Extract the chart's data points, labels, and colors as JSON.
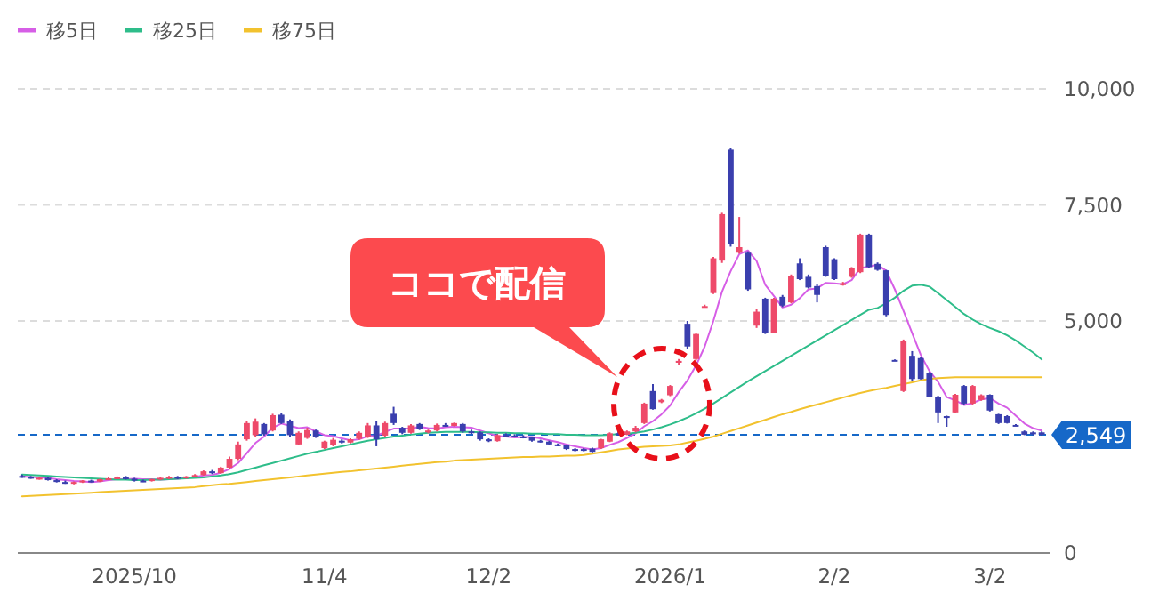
{
  "chart_data": {
    "type": "candlestick",
    "categories": [
      null,
      null,
      null,
      null,
      null,
      null,
      null,
      null,
      null,
      null,
      null,
      null,
      null,
      "2025/10",
      null,
      null,
      null,
      null,
      null,
      null,
      null,
      null,
      null,
      null,
      null,
      null,
      null,
      null,
      null,
      null,
      null,
      null,
      null,
      null,
      null,
      "11/4",
      null,
      null,
      null,
      null,
      null,
      null,
      null,
      null,
      null,
      null,
      null,
      null,
      null,
      null,
      null,
      null,
      null,
      null,
      "12/2",
      null,
      null,
      null,
      null,
      null,
      null,
      null,
      null,
      null,
      null,
      null,
      null,
      null,
      null,
      null,
      null,
      null,
      null,
      null,
      null,
      "2026/1",
      null,
      null,
      null,
      null,
      null,
      null,
      null,
      null,
      null,
      null,
      null,
      null,
      null,
      null,
      null,
      null,
      null,
      null,
      "2/2",
      null,
      null,
      null,
      null,
      null,
      null,
      null,
      null,
      null,
      null,
      null,
      null,
      null,
      null,
      null,
      null,
      null,
      "3/2",
      null,
      null,
      null,
      null,
      null,
      null
    ],
    "ohlc": [
      [
        1660,
        1690,
        1620,
        1640
      ],
      [
        1640,
        1660,
        1600,
        1610
      ],
      [
        1610,
        1640,
        1580,
        1620
      ],
      [
        1620,
        1630,
        1560,
        1570
      ],
      [
        1570,
        1590,
        1520,
        1530
      ],
      [
        1530,
        1560,
        1490,
        1500
      ],
      [
        1500,
        1540,
        1480,
        1530
      ],
      [
        1530,
        1570,
        1510,
        1560
      ],
      [
        1560,
        1580,
        1520,
        1540
      ],
      [
        1540,
        1600,
        1530,
        1590
      ],
      [
        1590,
        1630,
        1570,
        1610
      ],
      [
        1610,
        1650,
        1590,
        1630
      ],
      [
        1630,
        1660,
        1580,
        1600
      ],
      [
        1600,
        1620,
        1540,
        1560
      ],
      [
        1560,
        1580,
        1530,
        1550
      ],
      [
        1550,
        1600,
        1540,
        1590
      ],
      [
        1590,
        1630,
        1570,
        1620
      ],
      [
        1620,
        1660,
        1590,
        1640
      ],
      [
        1640,
        1660,
        1590,
        1610
      ],
      [
        1610,
        1660,
        1600,
        1650
      ],
      [
        1650,
        1700,
        1630,
        1680
      ],
      [
        1680,
        1780,
        1670,
        1760
      ],
      [
        1760,
        1790,
        1700,
        1720
      ],
      [
        1720,
        1860,
        1710,
        1840
      ],
      [
        1840,
        2080,
        1820,
        2030
      ],
      [
        2030,
        2400,
        2000,
        2340
      ],
      [
        2450,
        2850,
        2420,
        2800
      ],
      [
        2540,
        2900,
        2500,
        2830
      ],
      [
        2780,
        2800,
        2530,
        2560
      ],
      [
        2640,
        3000,
        2620,
        2970
      ],
      [
        2980,
        3020,
        2780,
        2800
      ],
      [
        2850,
        2880,
        2500,
        2540
      ],
      [
        2340,
        2620,
        2320,
        2590
      ],
      [
        2480,
        2700,
        2460,
        2650
      ],
      [
        2640,
        2660,
        2480,
        2500
      ],
      [
        2260,
        2420,
        2240,
        2400
      ],
      [
        2320,
        2480,
        2300,
        2440
      ],
      [
        2420,
        2450,
        2360,
        2380
      ],
      [
        2380,
        2470,
        2360,
        2450
      ],
      [
        2460,
        2620,
        2440,
        2590
      ],
      [
        2500,
        2800,
        2480,
        2750
      ],
      [
        2750,
        2850,
        2300,
        2450
      ],
      [
        2530,
        2830,
        2510,
        2800
      ],
      [
        3000,
        3150,
        2760,
        2800
      ],
      [
        2700,
        2720,
        2560,
        2590
      ],
      [
        2590,
        2780,
        2570,
        2750
      ],
      [
        2780,
        2800,
        2650,
        2680
      ],
      [
        2600,
        2660,
        2580,
        2640
      ],
      [
        2640,
        2790,
        2620,
        2760
      ],
      [
        2760,
        2800,
        2720,
        2740
      ],
      [
        2740,
        2810,
        2730,
        2800
      ],
      [
        2780,
        2800,
        2590,
        2620
      ],
      [
        2620,
        2660,
        2560,
        2600
      ],
      [
        2600,
        2620,
        2420,
        2450
      ],
      [
        2450,
        2470,
        2390,
        2410
      ],
      [
        2410,
        2560,
        2400,
        2540
      ],
      [
        2540,
        2580,
        2500,
        2530
      ],
      [
        2530,
        2560,
        2490,
        2510
      ],
      [
        2510,
        2540,
        2470,
        2490
      ],
      [
        2490,
        2510,
        2400,
        2420
      ],
      [
        2420,
        2440,
        2380,
        2400
      ],
      [
        2400,
        2420,
        2320,
        2340
      ],
      [
        2340,
        2360,
        2300,
        2320
      ],
      [
        2320,
        2330,
        2220,
        2240
      ],
      [
        2240,
        2260,
        2190,
        2210
      ],
      [
        2240,
        2260,
        2190,
        2210
      ],
      [
        2250,
        2270,
        2170,
        2180
      ],
      [
        2260,
        2460,
        2240,
        2450
      ],
      [
        2400,
        2600,
        2390,
        2580
      ],
      [
        2580,
        2620,
        2530,
        2550
      ],
      [
        2550,
        2640,
        2540,
        2620
      ],
      [
        2620,
        2740,
        2600,
        2700
      ],
      [
        2800,
        3240,
        2780,
        3220
      ],
      [
        3490,
        3640,
        3090,
        3100
      ],
      [
        3250,
        3320,
        3230,
        3300
      ],
      [
        3400,
        3620,
        3380,
        3600
      ],
      [
        4100,
        4180,
        4060,
        4140
      ],
      [
        4940,
        5000,
        4400,
        4450
      ],
      [
        4180,
        4750,
        4150,
        4720
      ],
      [
        5300,
        5350,
        5290,
        5320
      ],
      [
        5600,
        6380,
        5580,
        6350
      ],
      [
        6300,
        7330,
        6250,
        7300
      ],
      [
        8690,
        8720,
        6600,
        6660
      ],
      [
        6470,
        7240,
        6450,
        6590
      ],
      [
        6470,
        6500,
        5650,
        5680
      ],
      [
        4900,
        5250,
        4850,
        5200
      ],
      [
        5480,
        5500,
        4720,
        4750
      ],
      [
        4750,
        5500,
        4730,
        5480
      ],
      [
        5520,
        5560,
        5300,
        5330
      ],
      [
        5400,
        6000,
        5380,
        5970
      ],
      [
        6240,
        6350,
        5880,
        5900
      ],
      [
        5950,
        6000,
        5700,
        5720
      ],
      [
        5750,
        5800,
        5400,
        5560
      ],
      [
        6590,
        6620,
        5950,
        5970
      ],
      [
        6330,
        6350,
        5880,
        5900
      ],
      [
        5790,
        5840,
        5760,
        5810
      ],
      [
        5950,
        6160,
        5930,
        6140
      ],
      [
        6050,
        6880,
        6030,
        6860
      ],
      [
        6860,
        6880,
        6140,
        6160
      ],
      [
        6230,
        6260,
        6080,
        6100
      ],
      [
        6090,
        6100,
        5100,
        5130
      ],
      [
        4160,
        4170,
        4140,
        4150
      ],
      [
        3490,
        4600,
        3470,
        4560
      ],
      [
        4250,
        4350,
        3700,
        3750
      ],
      [
        4200,
        4230,
        3740,
        3750
      ],
      [
        3870,
        3900,
        3360,
        3370
      ],
      [
        3370,
        3390,
        2800,
        3030
      ],
      [
        2950,
        2960,
        2720,
        2910
      ],
      [
        3030,
        3430,
        3010,
        3410
      ],
      [
        3600,
        3620,
        3200,
        3220
      ],
      [
        3220,
        3620,
        3200,
        3600
      ],
      [
        3300,
        3420,
        3280,
        3400
      ],
      [
        3410,
        3420,
        3050,
        3070
      ],
      [
        2990,
        3000,
        2780,
        2800
      ],
      [
        2950,
        2970,
        2790,
        2800
      ],
      [
        2760,
        2780,
        2740,
        2750
      ],
      [
        2620,
        2640,
        2540,
        2550
      ],
      [
        2600,
        2620,
        2540,
        2560
      ],
      [
        2600,
        2620,
        2530,
        2549
      ]
    ],
    "series": [
      {
        "name": "移5日",
        "type": "line",
        "color": "#d65ee6",
        "values": [
          1650,
          1640,
          1630,
          1620,
          1590,
          1570,
          1550,
          1540,
          1530,
          1540,
          1570,
          1590,
          1590,
          1600,
          1590,
          1590,
          1580,
          1590,
          1600,
          1620,
          1640,
          1670,
          1680,
          1730,
          1810,
          1940,
          2150,
          2370,
          2510,
          2700,
          2790,
          2740,
          2690,
          2710,
          2620,
          2540,
          2520,
          2470,
          2430,
          2450,
          2520,
          2520,
          2610,
          2680,
          2680,
          2680,
          2720,
          2690,
          2680,
          2710,
          2720,
          2710,
          2700,
          2640,
          2580,
          2520,
          2510,
          2490,
          2500,
          2500,
          2470,
          2430,
          2390,
          2340,
          2300,
          2260,
          2230,
          2260,
          2330,
          2390,
          2480,
          2580,
          2730,
          2840,
          2990,
          3180,
          3470,
          3720,
          4040,
          4450,
          5000,
          5630,
          6070,
          6440,
          6520,
          6290,
          5780,
          5540,
          5290,
          5350,
          5490,
          5680,
          5700,
          5820,
          5810,
          5790,
          5880,
          6140,
          6170,
          6210,
          6080,
          5680,
          5220,
          4740,
          4270,
          3920,
          3690,
          3360,
          3290,
          3190,
          3230,
          3310,
          3340,
          3220,
          3130,
          2960,
          2790,
          2690,
          2640
        ]
      },
      {
        "name": "移25日",
        "type": "line",
        "color": "#2ebd8a",
        "values": [
          1690,
          1680,
          1670,
          1660,
          1650,
          1640,
          1630,
          1620,
          1610,
          1600,
          1590,
          1580,
          1580,
          1570,
          1570,
          1580,
          1580,
          1590,
          1600,
          1610,
          1620,
          1630,
          1650,
          1670,
          1700,
          1740,
          1790,
          1840,
          1890,
          1940,
          1990,
          2040,
          2090,
          2140,
          2180,
          2220,
          2260,
          2300,
          2340,
          2380,
          2420,
          2450,
          2480,
          2510,
          2530,
          2550,
          2570,
          2590,
          2600,
          2610,
          2610,
          2610,
          2610,
          2600,
          2600,
          2590,
          2590,
          2580,
          2580,
          2570,
          2570,
          2560,
          2560,
          2550,
          2550,
          2540,
          2540,
          2540,
          2550,
          2560,
          2570,
          2590,
          2620,
          2660,
          2710,
          2770,
          2840,
          2920,
          3010,
          3110,
          3220,
          3340,
          3460,
          3580,
          3700,
          3810,
          3920,
          4030,
          4140,
          4250,
          4360,
          4470,
          4580,
          4690,
          4800,
          4910,
          5020,
          5130,
          5240,
          5280,
          5380,
          5500,
          5650,
          5760,
          5780,
          5740,
          5600,
          5450,
          5300,
          5150,
          5030,
          4930,
          4850,
          4780,
          4690,
          4580,
          4450,
          4320,
          4170
        ]
      },
      {
        "name": "移75日",
        "type": "line",
        "color": "#f2c22e",
        "values": [
          1220,
          1230,
          1240,
          1250,
          1260,
          1270,
          1280,
          1290,
          1300,
          1310,
          1320,
          1330,
          1340,
          1350,
          1360,
          1370,
          1380,
          1390,
          1400,
          1410,
          1420,
          1440,
          1460,
          1480,
          1490,
          1510,
          1530,
          1550,
          1570,
          1590,
          1610,
          1630,
          1650,
          1670,
          1690,
          1710,
          1730,
          1750,
          1760,
          1780,
          1800,
          1820,
          1840,
          1860,
          1880,
          1900,
          1920,
          1940,
          1960,
          1970,
          1990,
          2000,
          2010,
          2020,
          2030,
          2040,
          2050,
          2060,
          2070,
          2070,
          2080,
          2080,
          2090,
          2100,
          2100,
          2110,
          2140,
          2170,
          2200,
          2230,
          2250,
          2270,
          2290,
          2300,
          2310,
          2320,
          2340,
          2380,
          2420,
          2460,
          2510,
          2570,
          2630,
          2690,
          2750,
          2810,
          2870,
          2930,
          2990,
          3040,
          3100,
          3150,
          3200,
          3250,
          3300,
          3350,
          3400,
          3450,
          3490,
          3530,
          3560,
          3600,
          3640,
          3680,
          3720,
          3750,
          3770,
          3780,
          3790,
          3790,
          3790,
          3790,
          3790,
          3790,
          3790,
          3790,
          3790,
          3790,
          3790
        ]
      }
    ],
    "ylim": [
      0,
      10000
    ],
    "yticks": [
      {
        "value": 0,
        "label": "0"
      },
      {
        "value": 5000,
        "label": "5,000"
      },
      {
        "value": 7500,
        "label": "7,500"
      },
      {
        "value": 10000,
        "label": "10,000"
      }
    ],
    "grid": "y",
    "legend": "top left",
    "ref_lines": [
      {
        "axis": "y",
        "value": 2549,
        "label": "2,549",
        "color": "#1668c8",
        "line_style": "dashed"
      }
    ],
    "annotations": [
      "ココで配信"
    ]
  }
}
